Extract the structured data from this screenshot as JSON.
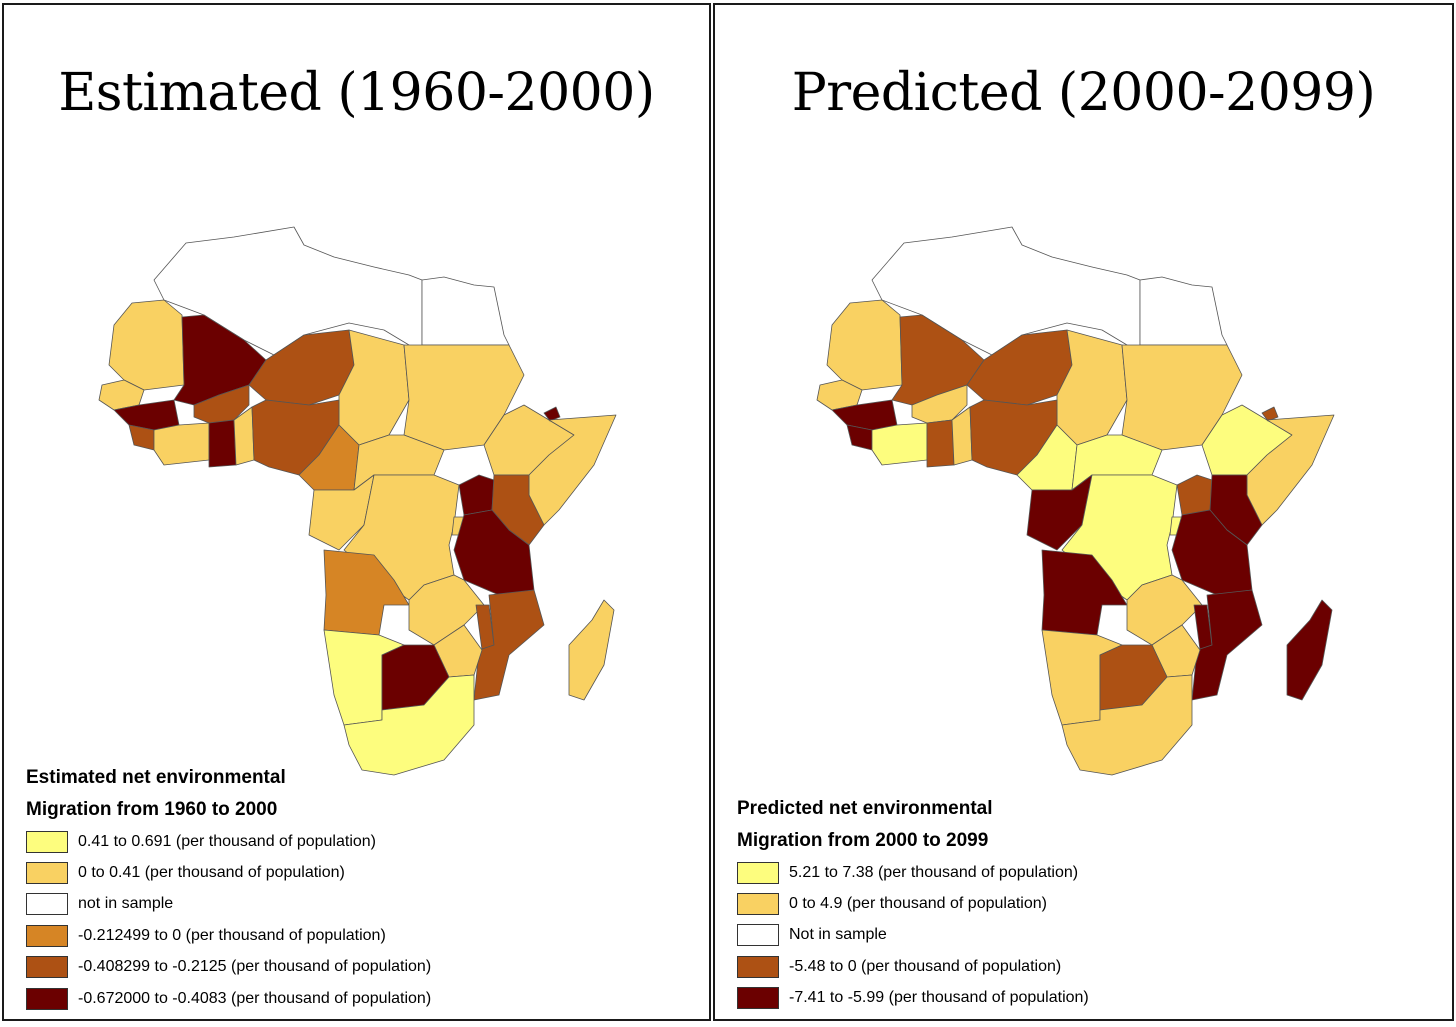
{
  "colors": {
    "light_yellow": "#fdfd7e",
    "yellow": "#f9d162",
    "white": "#ffffff",
    "orange": "#d68525",
    "brown": "#ad5114",
    "dark": "#6b0000",
    "border": "#555555"
  },
  "left": {
    "title": "Estimated (1960-2000)",
    "legend": {
      "heading_line1": "Estimated net environmental",
      "heading_line2": "Migration from 1960 to 2000",
      "items": [
        {
          "label": "0.41 to 0.691 (per thousand of population)",
          "color": "#fdfd7e"
        },
        {
          "label": "0 to 0.41  (per thousand of population)",
          "color": "#f9d162"
        },
        {
          "label": "not in sample",
          "color": "#ffffff"
        },
        {
          "label": "-0.212499 to 0 (per thousand of population)",
          "color": "#d68525"
        },
        {
          "label": "-0.408299 to -0.2125  (per thousand of population)",
          "color": "#ad5114"
        },
        {
          "label": "-0.672000 to -0.4083  (per thousand of population)",
          "color": "#6b0000"
        }
      ]
    },
    "regions": {
      "north_africa": "#ffffff",
      "egypt": "#ffffff",
      "mauritania": "#f9d162",
      "mali": "#6b0000",
      "niger": "#ad5114",
      "chad": "#f9d162",
      "sudan": "#f9d162",
      "senegal_gambia": "#f9d162",
      "guinea": "#6b0000",
      "sierra_leone_liberia": "#ad5114",
      "ivory_coast": "#f9d162",
      "burkina_faso": "#ad5114",
      "ghana": "#6b0000",
      "togo_benin": "#f9d162",
      "nigeria": "#ad5114",
      "cameroon": "#d68525",
      "car": "#f9d162",
      "ethiopia": "#f9d162",
      "eritrea_djibouti": "#6b0000",
      "somalia": "#f9d162",
      "congo_gabon": "#f9d162",
      "drc": "#f9d162",
      "uganda": "#6b0000",
      "kenya": "#ad5114",
      "rwanda_burundi": "#f9d162",
      "tanzania": "#6b0000",
      "angola": "#d68525",
      "zambia": "#f9d162",
      "malawi": "#ad5114",
      "mozambique": "#ad5114",
      "zimbabwe": "#f9d162",
      "namibia": "#fdfd7e",
      "botswana": "#6b0000",
      "south_africa": "#fdfd7e",
      "madagascar": "#f9d162"
    }
  },
  "right": {
    "title": "Predicted (2000-2099)",
    "legend": {
      "heading_line1": "Predicted net environmental",
      "heading_line2": "Migration from 2000 to 2099",
      "items": [
        {
          "label": "5.21 to 7.38 (per thousand of population)",
          "color": "#fdfd7e"
        },
        {
          "label": "0 to 4.9 (per thousand of population)",
          "color": "#f9d162"
        },
        {
          "label": "Not in sample",
          "color": "#ffffff"
        },
        {
          "label": "-5.48 to 0 (per thousand of population)",
          "color": "#ad5114"
        },
        {
          "label": "-7.41 to -5.99 (per thousand of population)",
          "color": "#6b0000"
        }
      ]
    },
    "regions": {
      "north_africa": "#ffffff",
      "egypt": "#ffffff",
      "mauritania": "#f9d162",
      "mali": "#ad5114",
      "niger": "#ad5114",
      "chad": "#f9d162",
      "sudan": "#f9d162",
      "senegal_gambia": "#f9d162",
      "guinea": "#6b0000",
      "sierra_leone_liberia": "#6b0000",
      "ivory_coast": "#fdfd7e",
      "burkina_faso": "#f9d162",
      "ghana": "#ad5114",
      "togo_benin": "#f9d162",
      "nigeria": "#ad5114",
      "cameroon": "#fdfd7e",
      "car": "#fdfd7e",
      "ethiopia": "#fdfd7e",
      "eritrea_djibouti": "#ad5114",
      "somalia": "#f9d162",
      "congo_gabon": "#6b0000",
      "drc": "#fdfd7e",
      "uganda": "#ad5114",
      "kenya": "#6b0000",
      "rwanda_burundi": "#fdfd7e",
      "tanzania": "#6b0000",
      "angola": "#6b0000",
      "zambia": "#f9d162",
      "malawi": "#6b0000",
      "mozambique": "#6b0000",
      "zimbabwe": "#f9d162",
      "namibia": "#f9d162",
      "botswana": "#ad5114",
      "south_africa": "#f9d162",
      "madagascar": "#6b0000"
    }
  }
}
